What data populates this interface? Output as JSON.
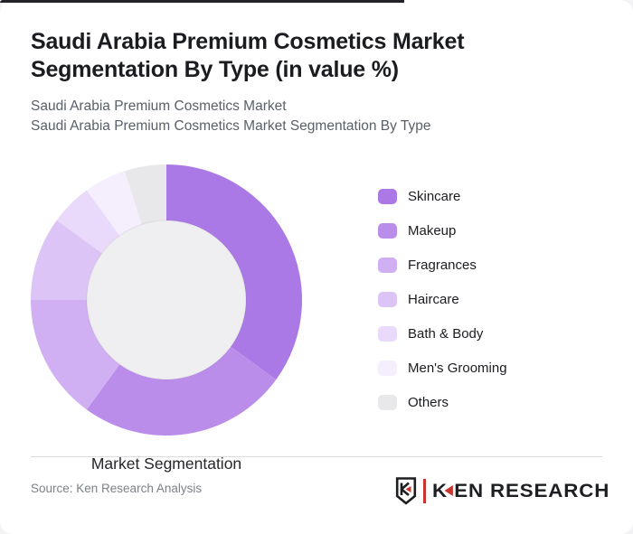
{
  "page": {
    "title_line1": "Saudi Arabia Premium Cosmetics Market",
    "title_line2": "Segmentation By Type (in value %)",
    "subtitle_line1": "Saudi Arabia Premium Cosmetics Market",
    "subtitle_line2": "Saudi Arabia Premium Cosmetics Market Segmentation By Type"
  },
  "chart_data": {
    "type": "pie",
    "subtype": "donut",
    "title": "Saudi Arabia Premium Cosmetics Market Segmentation By Type (in value %)",
    "center_label": "Market Segmentation",
    "categories": [
      "Skincare",
      "Makeup",
      "Fragrances",
      "Haircare",
      "Bath & Body",
      "Men's Grooming",
      "Others"
    ],
    "values": [
      35,
      25,
      15,
      10,
      5,
      5,
      5
    ],
    "unit": "value %",
    "colors": [
      "#ab79e6",
      "#bb8deb",
      "#d0aff2",
      "#dcc5f6",
      "#e9d9fa",
      "#f4eefd",
      "#e8e8ea"
    ],
    "inner_circle_color": "#efeff1",
    "start_angle_deg": 0,
    "direction": "clockwise",
    "legend_position": "right",
    "data_labels": false
  },
  "footer": {
    "source": "Source: Ken Research Analysis",
    "logo": {
      "shield_letter": "K",
      "text_before_triangle": "K",
      "text_after_triangle": "EN RESEARCH",
      "red": "#c9342e",
      "dark": "#1d1e22"
    }
  }
}
